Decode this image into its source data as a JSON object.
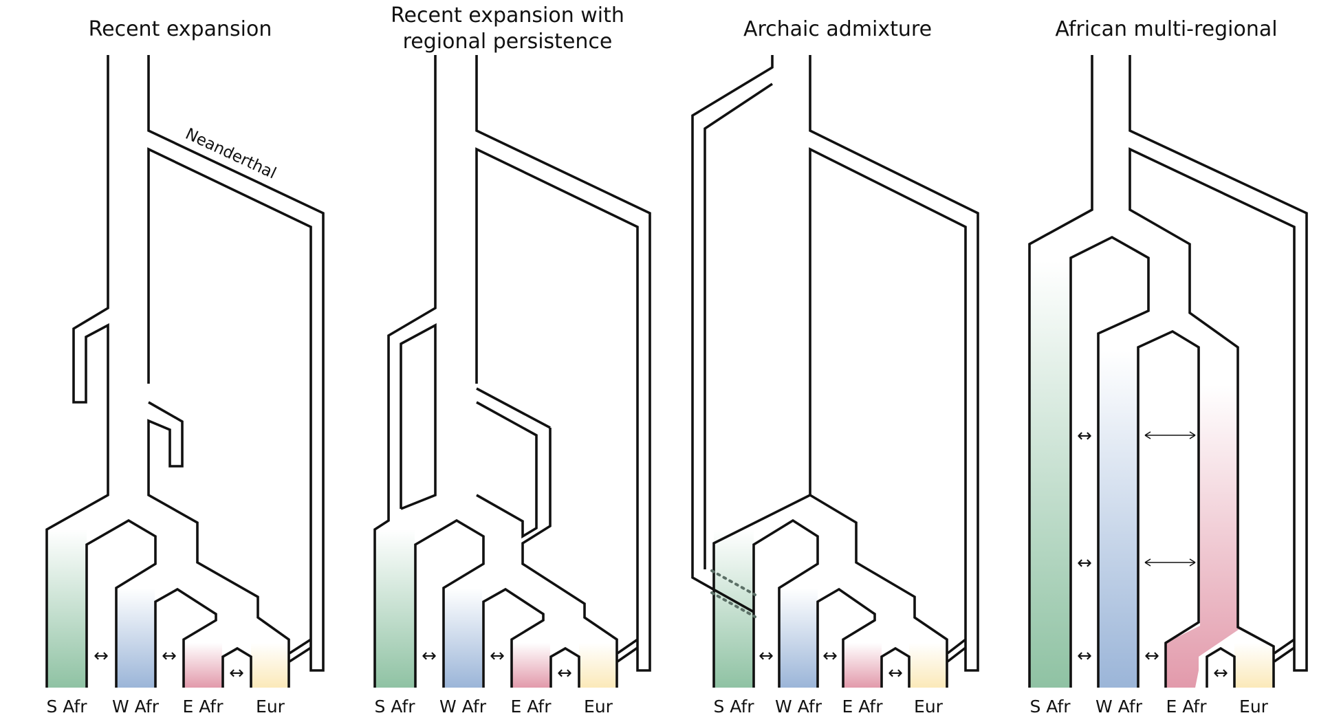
{
  "panels": [
    {
      "title": "Recent expansion"
    },
    {
      "title": "Recent expansion with",
      "title_line2": "regional persistence"
    },
    {
      "title": "Archaic admixture"
    },
    {
      "title": "African multi-regional"
    }
  ],
  "labels": {
    "neanderthal": "Neanderthal",
    "s_afr": "S Afr",
    "w_afr": "W Afr",
    "e_afr": "E Afr",
    "eur": "Eur",
    "arrow": "↔"
  },
  "colors": {
    "s_afr": "#8fc2a3",
    "w_afr": "#9bb5d8",
    "e_afr": "#e29aab",
    "eur": "#fbe9b9",
    "line": "#111111"
  }
}
